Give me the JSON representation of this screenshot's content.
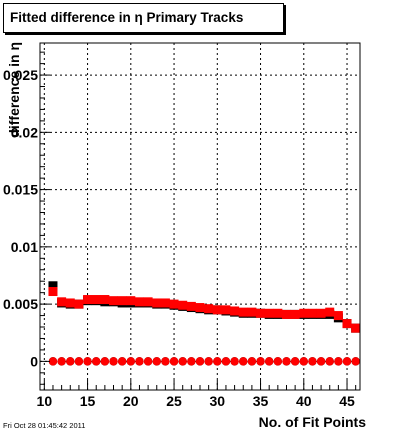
{
  "title": "Fitted difference in  η Primary Tracks",
  "timestamp": "Fri Oct 28 01:45:42 2011",
  "colors": {
    "series_black": "#000000",
    "series_red": "#ff0000",
    "grid": "#000000",
    "background": "#ffffff"
  },
  "chart_data": {
    "type": "scatter",
    "title": "Fitted difference in  η Primary Tracks",
    "xlabel": "No. of Fit Points",
    "ylabel": "difference in η",
    "xlim": [
      9.5,
      46.5
    ],
    "ylim": [
      -0.0025,
      0.0278
    ],
    "x_ticks": [
      10,
      15,
      20,
      25,
      30,
      35,
      40,
      45
    ],
    "y_ticks": [
      0,
      0.005,
      0.01,
      0.015,
      0.02,
      0.025
    ],
    "y_tick_labels": [
      "0",
      "0.005",
      "0.01",
      "0.015",
      "0.02",
      "0.025"
    ],
    "x_tick_labels": [
      "10",
      "15",
      "20",
      "25",
      "30",
      "35",
      "40",
      "45"
    ],
    "grid": true,
    "series": [
      {
        "name": "",
        "color": "#000000",
        "marker": "square",
        "x": [
          11,
          12,
          13,
          14,
          15,
          16,
          17,
          18,
          19,
          20,
          21,
          22,
          23,
          24,
          25,
          26,
          27,
          28,
          29,
          30,
          31,
          32,
          33,
          34,
          35,
          36,
          37,
          38,
          39,
          40,
          41,
          42,
          43,
          44,
          45,
          46
        ],
        "y": [
          0.0066,
          0.0051,
          0.005,
          0.005,
          0.0053,
          0.0053,
          0.0052,
          0.0052,
          0.0051,
          0.0051,
          0.0051,
          0.0051,
          0.005,
          0.005,
          0.0049,
          0.0048,
          0.0047,
          0.0046,
          0.0045,
          0.0045,
          0.0044,
          0.0043,
          0.0042,
          0.0042,
          0.0042,
          0.0041,
          0.0041,
          0.0041,
          0.0041,
          0.0041,
          0.0041,
          0.0041,
          0.0041,
          0.0038,
          0.0033,
          0.0029
        ]
      },
      {
        "name": "",
        "color": "#ff0000",
        "marker": "square",
        "x": [
          11,
          12,
          13,
          14,
          15,
          16,
          17,
          18,
          19,
          20,
          21,
          22,
          23,
          24,
          25,
          26,
          27,
          28,
          29,
          30,
          31,
          32,
          33,
          34,
          35,
          36,
          37,
          38,
          39,
          40,
          41,
          42,
          43,
          44,
          45,
          46
        ],
        "y": [
          0.0061,
          0.0052,
          0.0051,
          0.005,
          0.0054,
          0.0054,
          0.0054,
          0.0053,
          0.0053,
          0.0053,
          0.0052,
          0.0052,
          0.0051,
          0.0051,
          0.005,
          0.0049,
          0.0048,
          0.0047,
          0.0046,
          0.0045,
          0.0045,
          0.0044,
          0.0043,
          0.0043,
          0.0042,
          0.0042,
          0.0042,
          0.0041,
          0.0041,
          0.0042,
          0.0042,
          0.0042,
          0.0043,
          0.004,
          0.0033,
          0.0029
        ]
      },
      {
        "name": "",
        "color": "#000000",
        "marker": "circle",
        "x": [
          11,
          12,
          13,
          14,
          15,
          16,
          17,
          18,
          19,
          20,
          21,
          22,
          23,
          24,
          25,
          26,
          27,
          28,
          29,
          30,
          31,
          32,
          33,
          34,
          35,
          36,
          37,
          38,
          39,
          40,
          41,
          42,
          43,
          44,
          45,
          46
        ],
        "y": [
          0,
          0,
          0,
          0,
          0,
          0,
          0,
          0,
          0,
          0,
          0,
          0,
          0,
          0,
          0,
          0,
          0,
          0,
          0,
          0,
          0,
          0,
          0,
          0,
          0,
          0,
          0,
          0,
          0,
          0,
          0,
          0,
          0,
          0,
          0,
          0
        ]
      },
      {
        "name": "",
        "color": "#ff0000",
        "marker": "circle",
        "x": [
          11,
          12,
          13,
          14,
          15,
          16,
          17,
          18,
          19,
          20,
          21,
          22,
          23,
          24,
          25,
          26,
          27,
          28,
          29,
          30,
          31,
          32,
          33,
          34,
          35,
          36,
          37,
          38,
          39,
          40,
          41,
          42,
          43,
          44,
          45,
          46
        ],
        "y": [
          0,
          0,
          0,
          0,
          0,
          0,
          0,
          0,
          0,
          0,
          0,
          0,
          0,
          0,
          0,
          0,
          0,
          0,
          0,
          0,
          0,
          0,
          0,
          0,
          0,
          0,
          0,
          0,
          0,
          0,
          0,
          0,
          0,
          0,
          0,
          0
        ]
      }
    ]
  }
}
